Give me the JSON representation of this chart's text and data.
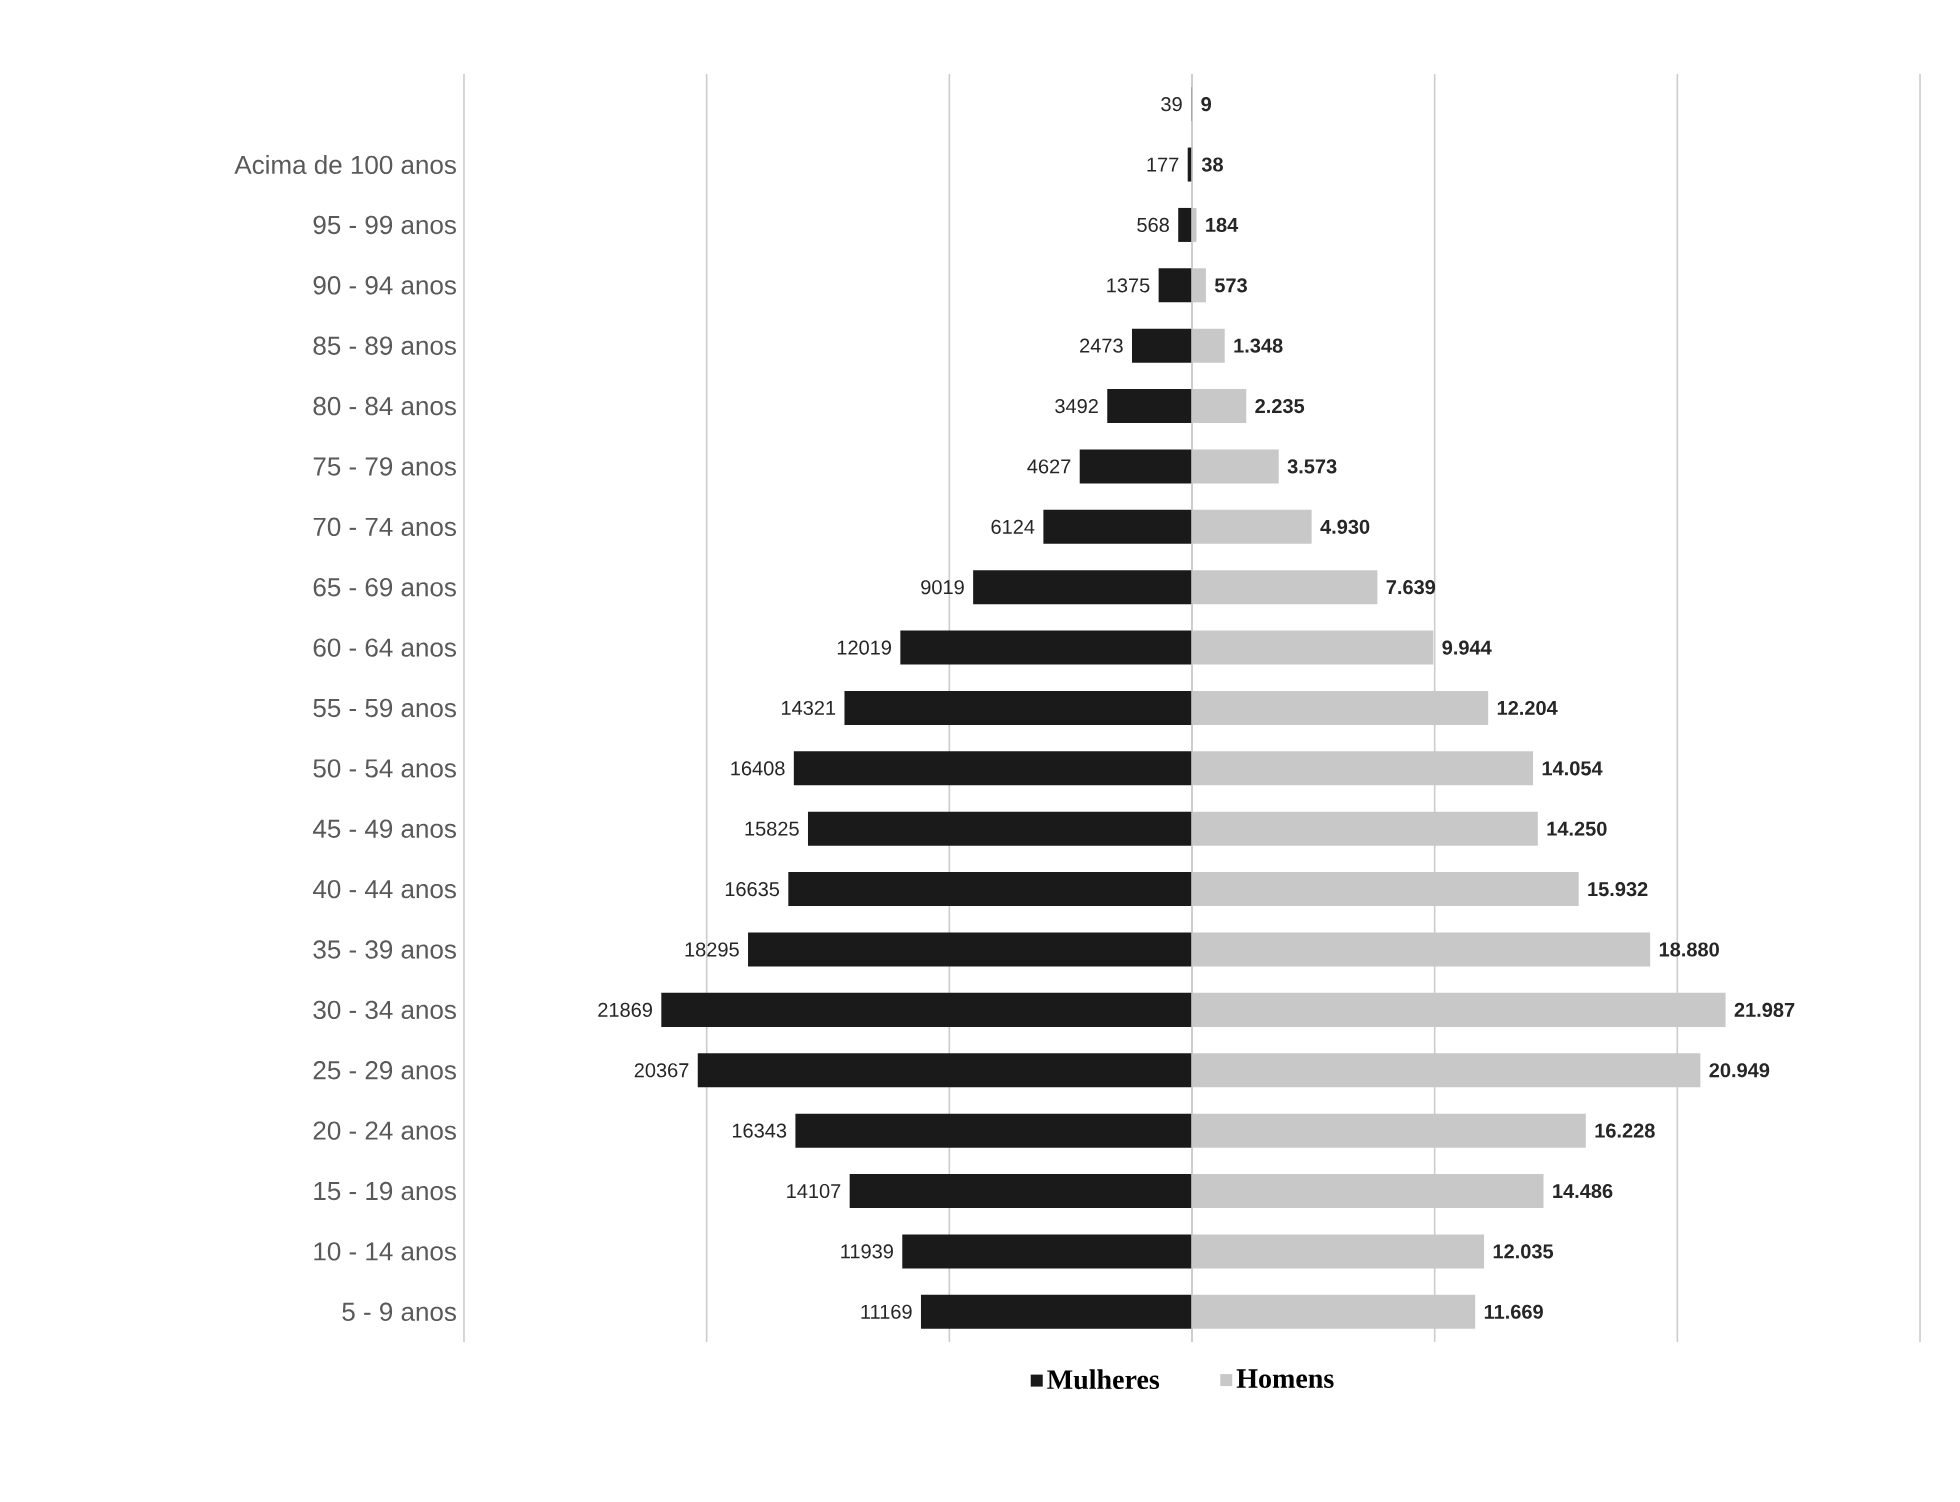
{
  "chart_data": [
    {
      "type": "bar",
      "orientation": "horizontal",
      "tick_labels": "y",
      "categories": [
        null,
        "Acima de 100 anos",
        "95 - 99 anos",
        "90 - 94 anos",
        "85 - 89 anos",
        "80 - 84 anos",
        "75 - 79 anos",
        "70 - 74 anos",
        "65 - 69 anos",
        "60 - 64 anos",
        "55 - 59 anos",
        "50 - 54 anos",
        "45 - 49 anos",
        "40 - 44 anos",
        "35 - 39 anos",
        "30 - 34 anos",
        "25 - 29 anos",
        "20 - 24 anos",
        "15 - 19 anos",
        "10 - 14 anos",
        "5 - 9 anos"
      ],
      "series": [
        {
          "name": "Mulheres",
          "color": "#1a1a1a",
          "values": [
            39,
            177,
            568,
            1375,
            2473,
            3492,
            4627,
            6124,
            9019,
            12019,
            14321,
            16408,
            15825,
            16635,
            18295,
            21869,
            20367,
            16343,
            14107,
            11939,
            11169
          ],
          "value_labels": [
            "39",
            "177",
            "568",
            "1375",
            "2473",
            "3492",
            "4627",
            "6124",
            "9019",
            "12019",
            "14321",
            "16408",
            "15825",
            "16635",
            "18295",
            "21869",
            "20367",
            "16343",
            "14107",
            "11939",
            "11169"
          ]
        }
      ],
      "xlim": [
        30000,
        0
      ],
      "xticks": [
        {
          "value": 30000,
          "label": null
        },
        {
          "value": 20000,
          "label": null
        },
        {
          "value": 10000,
          "label": null
        },
        {
          "value": 0,
          "label": null
        }
      ],
      "grid": "x",
      "legend": "bottom"
    },
    {
      "type": "bar",
      "orientation": "horizontal",
      "tick_labels": false,
      "categories": [
        null,
        null,
        null,
        null,
        null,
        null,
        null,
        null,
        null,
        null,
        null,
        null,
        null,
        null,
        null,
        null,
        null,
        null,
        null,
        null,
        null
      ],
      "series": [
        {
          "name": "Homens",
          "color": "#c8c8c8",
          "values": [
            9,
            38,
            184,
            573,
            1348,
            2235,
            3573,
            4930,
            7639,
            9944,
            12204,
            14054,
            14250,
            15932,
            18880,
            21987,
            20949,
            16228,
            14486,
            12035,
            11669
          ],
          "value_labels": [
            "9",
            "38",
            "184",
            "573",
            "1.348",
            "2.235",
            "3.573",
            "4.930",
            "7.639",
            "9.944",
            "12.204",
            "14.054",
            "14.250",
            "15.932",
            "18.880",
            "21.987",
            "20.949",
            "16.228",
            "14.486",
            "12.035",
            "11.669"
          ]
        }
      ],
      "xlim": [
        0,
        30000
      ],
      "xticks": [
        {
          "value": 0,
          "label": null
        },
        {
          "value": 10000,
          "label": null
        },
        {
          "value": 20000,
          "label": null
        },
        {
          "value": 30000,
          "label": null
        }
      ],
      "grid": "x",
      "legend": "bottom"
    }
  ]
}
